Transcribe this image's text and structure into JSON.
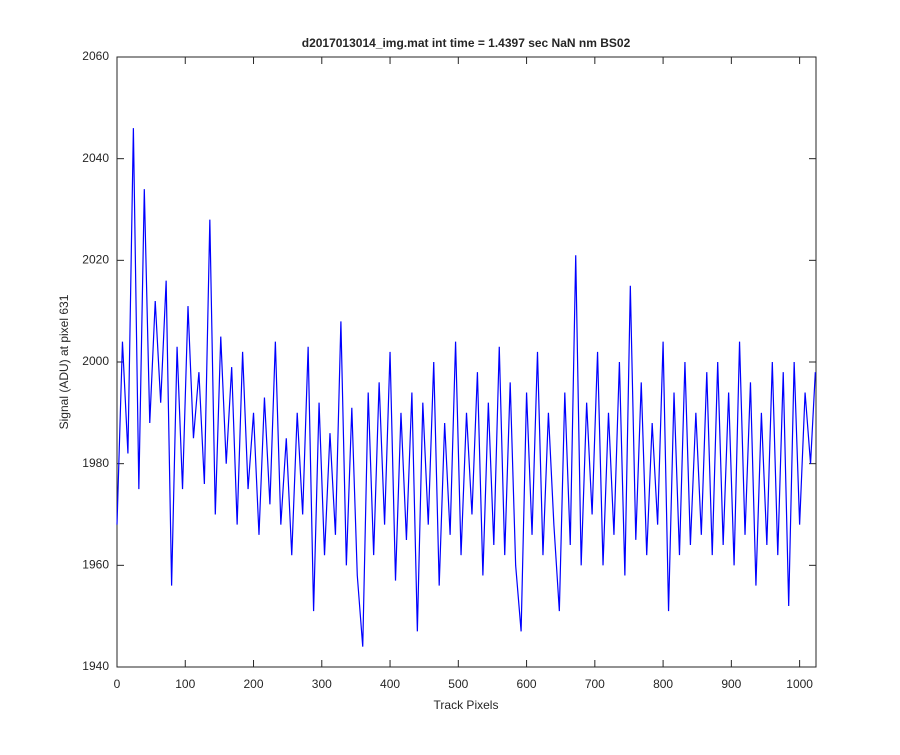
{
  "chart_data": {
    "type": "line",
    "title": "d2017013014_img.mat int time = 1.4397 sec  NaN nm BS02",
    "x_label": "Track Pixels",
    "y_label": "Signal (ADU) at pixel 631",
    "x": [
      0,
      8,
      16,
      24,
      32,
      40,
      48,
      56,
      64,
      72,
      80,
      88,
      96,
      104,
      112,
      120,
      128,
      136,
      144,
      152,
      160,
      168,
      176,
      184,
      192,
      200,
      208,
      216,
      224,
      232,
      240,
      248,
      256,
      264,
      272,
      280,
      288,
      296,
      304,
      312,
      320,
      328,
      336,
      344,
      352,
      360,
      368,
      376,
      384,
      392,
      400,
      408,
      416,
      424,
      432,
      440,
      448,
      456,
      464,
      472,
      480,
      488,
      496,
      504,
      512,
      520,
      528,
      536,
      544,
      552,
      560,
      568,
      576,
      584,
      592,
      600,
      608,
      616,
      624,
      632,
      640,
      648,
      656,
      664,
      672,
      680,
      688,
      696,
      704,
      712,
      720,
      728,
      736,
      744,
      752,
      760,
      768,
      776,
      784,
      792,
      800,
      808,
      816,
      824,
      832,
      840,
      848,
      856,
      864,
      872,
      880,
      888,
      896,
      904,
      912,
      920,
      928,
      936,
      944,
      952,
      960,
      968,
      976,
      984,
      992,
      1000,
      1008,
      1016,
      1023
    ],
    "series": [
      {
        "color": "#0000ff",
        "values": [
          1968,
          2004,
          1982,
          2046,
          1975,
          2034,
          1988,
          2012,
          1992,
          2016,
          1956,
          2003,
          1975,
          2011,
          1985,
          1998,
          1976,
          2028,
          1970,
          2005,
          1980,
          1999,
          1968,
          2002,
          1975,
          1990,
          1966,
          1993,
          1972,
          2004,
          1968,
          1985,
          1962,
          1990,
          1970,
          2003,
          1951,
          1992,
          1962,
          1986,
          1966,
          2008,
          1960,
          1991,
          1958,
          1944,
          1994,
          1962,
          1996,
          1968,
          2002,
          1957,
          1990,
          1965,
          1994,
          1947,
          1992,
          1968,
          2000,
          1956,
          1988,
          1966,
          2004,
          1962,
          1990,
          1970,
          1998,
          1958,
          1992,
          1964,
          2003,
          1962,
          1996,
          1960,
          1947,
          1994,
          1966,
          2002,
          1962,
          1990,
          1968,
          1951,
          1994,
          1964,
          2021,
          1960,
          1992,
          1970,
          2002,
          1960,
          1990,
          1966,
          2000,
          1958,
          2015,
          1965,
          1996,
          1962,
          1988,
          1968,
          2004,
          1951,
          1994,
          1962,
          2000,
          1964,
          1990,
          1966,
          1998,
          1962,
          2000,
          1964,
          1994,
          1960,
          2004,
          1966,
          1996,
          1956,
          1990,
          1964,
          2000,
          1962,
          1998,
          1952,
          2000,
          1968,
          1994,
          1980,
          1998
        ]
      }
    ],
    "xlim": [
      0,
      1024
    ],
    "xticks": [
      0,
      100,
      200,
      300,
      400,
      500,
      600,
      700,
      800,
      900,
      1000
    ],
    "ylim": [
      1940,
      2060
    ],
    "yticks": [
      1940,
      1960,
      1980,
      2000,
      2020,
      2040,
      2060
    ]
  }
}
